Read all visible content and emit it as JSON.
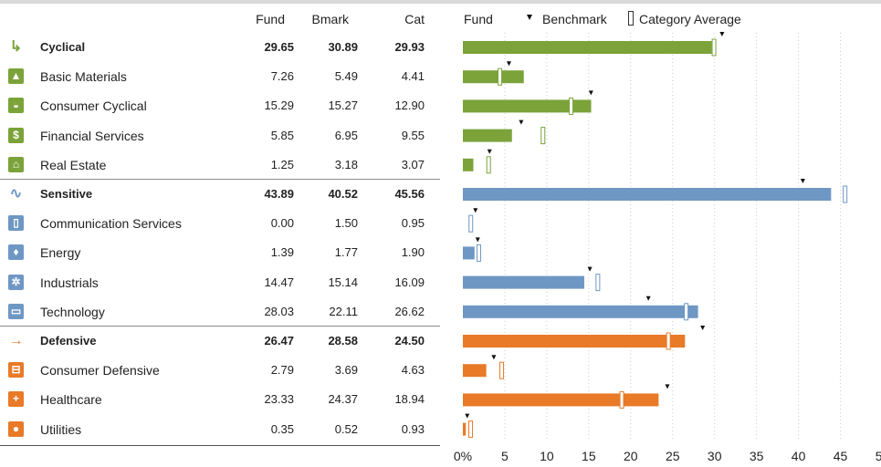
{
  "header": {
    "fund": "Fund",
    "bmark": "Bmark",
    "cat": "Cat",
    "legend_fund": "Fund",
    "legend_benchmark": "Benchmark",
    "legend_category": "Category Average"
  },
  "colors": {
    "cyclical": "#7ba33a",
    "sensitive": "#6f97c4",
    "defensive": "#e87a28",
    "grid": "#cccccc"
  },
  "rows": [
    {
      "label": "Cyclical",
      "fund": "29.65",
      "bmark": "30.89",
      "cat": "29.93",
      "sector": true,
      "group": "cyclical",
      "icon": "cyclical-icon",
      "glyph": "↳"
    },
    {
      "label": "Basic Materials",
      "fund": "7.26",
      "bmark": "5.49",
      "cat": "4.41",
      "sector": false,
      "group": "cyclical",
      "icon": "basic-materials-icon",
      "glyph": "▲"
    },
    {
      "label": "Consumer Cyclical",
      "fund": "15.29",
      "bmark": "15.27",
      "cat": "12.90",
      "sector": false,
      "group": "cyclical",
      "icon": "car-icon",
      "glyph": "◒"
    },
    {
      "label": "Financial Services",
      "fund": "5.85",
      "bmark": "6.95",
      "cat": "9.55",
      "sector": false,
      "group": "cyclical",
      "icon": "financial-services-icon",
      "glyph": "$"
    },
    {
      "label": "Real Estate",
      "fund": "1.25",
      "bmark": "3.18",
      "cat": "3.07",
      "sector": false,
      "group": "cyclical",
      "icon": "house-icon",
      "glyph": "⌂"
    },
    {
      "label": "Sensitive",
      "fund": "43.89",
      "bmark": "40.52",
      "cat": "45.56",
      "sector": true,
      "group": "sensitive",
      "icon": "sensitive-icon",
      "glyph": "∿"
    },
    {
      "label": "Communication Services",
      "fund": "0.00",
      "bmark": "1.50",
      "cat": "0.95",
      "sector": false,
      "group": "sensitive",
      "icon": "phone-icon",
      "glyph": "▯"
    },
    {
      "label": "Energy",
      "fund": "1.39",
      "bmark": "1.77",
      "cat": "1.90",
      "sector": false,
      "group": "sensitive",
      "icon": "flame-icon",
      "glyph": "♦"
    },
    {
      "label": "Industrials",
      "fund": "14.47",
      "bmark": "15.14",
      "cat": "16.09",
      "sector": false,
      "group": "sensitive",
      "icon": "gear-icon",
      "glyph": "✲"
    },
    {
      "label": "Technology",
      "fund": "28.03",
      "bmark": "22.11",
      "cat": "26.62",
      "sector": false,
      "group": "sensitive",
      "icon": "computer-icon",
      "glyph": "▭"
    },
    {
      "label": "Defensive",
      "fund": "26.47",
      "bmark": "28.58",
      "cat": "24.50",
      "sector": true,
      "group": "defensive",
      "icon": "defensive-arrow-icon",
      "glyph": "→"
    },
    {
      "label": "Consumer Defensive",
      "fund": "2.79",
      "bmark": "3.69",
      "cat": "4.63",
      "sector": false,
      "group": "defensive",
      "icon": "shopping-cart-icon",
      "glyph": "⊟"
    },
    {
      "label": "Healthcare",
      "fund": "23.33",
      "bmark": "24.37",
      "cat": "18.94",
      "sector": false,
      "group": "defensive",
      "icon": "medical-cross-icon",
      "glyph": "+"
    },
    {
      "label": "Utilities",
      "fund": "0.35",
      "bmark": "0.52",
      "cat": "0.93",
      "sector": false,
      "group": "defensive",
      "icon": "light-bulb-icon",
      "glyph": "●"
    }
  ],
  "chart_data": {
    "type": "bar",
    "orientation": "horizontal",
    "categories": [
      "Cyclical",
      "Basic Materials",
      "Consumer Cyclical",
      "Financial Services",
      "Real Estate",
      "Sensitive",
      "Communication Services",
      "Energy",
      "Industrials",
      "Technology",
      "Defensive",
      "Consumer Defensive",
      "Healthcare",
      "Utilities"
    ],
    "series": [
      {
        "name": "Fund",
        "values": [
          29.65,
          7.26,
          15.29,
          5.85,
          1.25,
          43.89,
          0.0,
          1.39,
          14.47,
          28.03,
          26.47,
          2.79,
          23.33,
          0.35
        ]
      },
      {
        "name": "Benchmark",
        "values": [
          30.89,
          5.49,
          15.27,
          6.95,
          3.18,
          40.52,
          1.5,
          1.77,
          15.14,
          22.11,
          28.58,
          3.69,
          24.37,
          0.52
        ]
      },
      {
        "name": "Category Average",
        "values": [
          29.93,
          4.41,
          12.9,
          9.55,
          3.07,
          45.56,
          0.95,
          1.9,
          16.09,
          26.62,
          24.5,
          4.63,
          18.94,
          0.93
        ]
      }
    ],
    "xlim": [
      0,
      50
    ],
    "xticks": [
      "0%",
      "5",
      "10",
      "15",
      "20",
      "25",
      "30",
      "35",
      "40",
      "45",
      "50"
    ],
    "grid": true,
    "legend_position": "top"
  }
}
